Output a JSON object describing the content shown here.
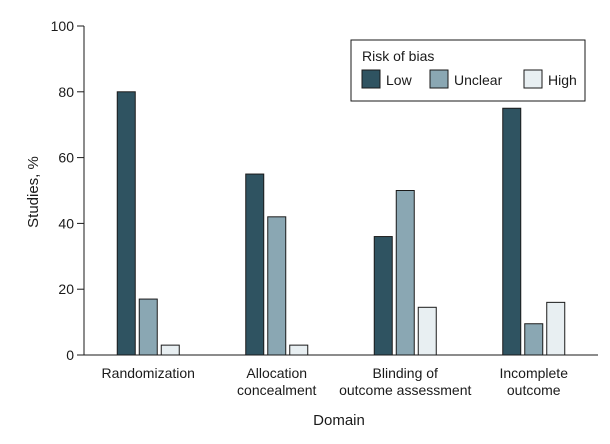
{
  "chart_data": {
    "type": "bar",
    "categories": [
      [
        "Randomization"
      ],
      [
        "Allocation",
        "concealment"
      ],
      [
        "Blinding of",
        "outcome assessment"
      ],
      [
        "Incomplete",
        "outcome"
      ]
    ],
    "series": [
      {
        "name": "Low",
        "color": "#2f5361",
        "values": [
          80,
          55,
          36,
          75
        ]
      },
      {
        "name": "Unclear",
        "color": "#8aa7b3",
        "values": [
          17,
          42,
          50,
          9.5
        ]
      },
      {
        "name": "High",
        "color": "#e8eff2",
        "values": [
          3,
          3,
          14.5,
          16
        ]
      }
    ],
    "xlabel": "Domain",
    "ylabel": "Studies, %",
    "ylim": [
      0,
      100
    ],
    "yticks": [
      0,
      20,
      40,
      60,
      80,
      100
    ],
    "legend": {
      "title": "Risk of bias",
      "placement": "top-right"
    },
    "grid": false
  }
}
